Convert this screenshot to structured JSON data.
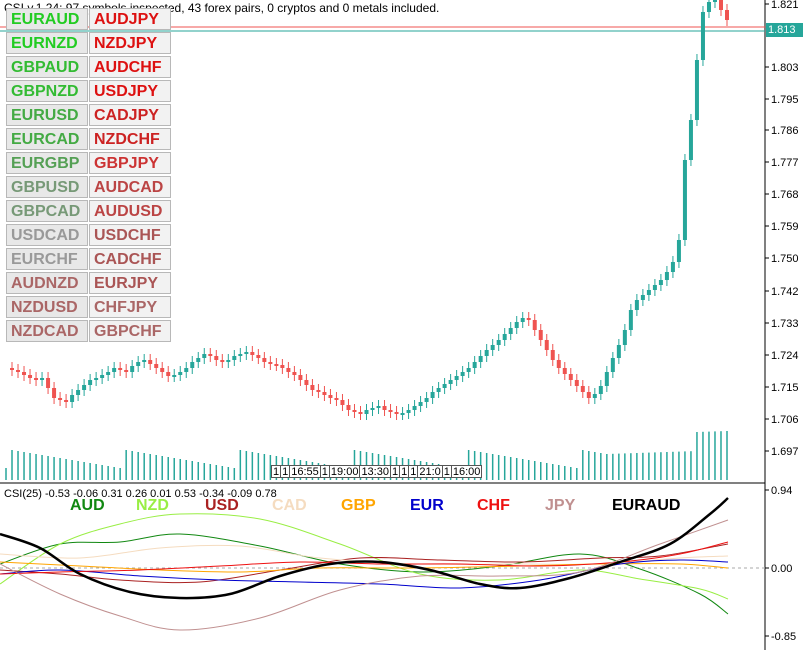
{
  "info_text": "CSI v.1.24: 97 symbols inspected, 43 forex pairs, 0 cryptos and 0 metals included.",
  "current_price": "1.813",
  "price_axis": [
    "1.821",
    "1.803",
    "1.795",
    "1.786",
    "1.777",
    "1.768",
    "1.759",
    "1.750",
    "1.742",
    "1.733",
    "1.724",
    "1.715",
    "1.706",
    "1.697"
  ],
  "pair_rows": [
    [
      {
        "label": "EURAUD",
        "color": "#22cc22"
      },
      {
        "label": "AUDJPY",
        "color": "#dd1111"
      }
    ],
    [
      {
        "label": "EURNZD",
        "color": "#22cc22"
      },
      {
        "label": "NZDJPY",
        "color": "#dd1111"
      }
    ],
    [
      {
        "label": "GBPAUD",
        "color": "#33bb33"
      },
      {
        "label": "AUDCHF",
        "color": "#dd1111"
      }
    ],
    [
      {
        "label": "GBPNZD",
        "color": "#33bb33"
      },
      {
        "label": "USDJPY",
        "color": "#dd1111"
      }
    ],
    [
      {
        "label": "EURUSD",
        "color": "#44aa44"
      },
      {
        "label": "CADJPY",
        "color": "#cc2222"
      }
    ],
    [
      {
        "label": "EURCAD",
        "color": "#44aa44"
      },
      {
        "label": "NZDCHF",
        "color": "#cc2222"
      }
    ],
    [
      {
        "label": "EURGBP",
        "color": "#55a055"
      },
      {
        "label": "GBPJPY",
        "color": "#cc3333"
      }
    ],
    [
      {
        "label": "GBPUSD",
        "color": "#779977"
      },
      {
        "label": "AUDCAD",
        "color": "#bb4444"
      }
    ],
    [
      {
        "label": "GBPCAD",
        "color": "#779977"
      },
      {
        "label": "AUDUSD",
        "color": "#bb4444"
      }
    ],
    [
      {
        "label": "USDCAD",
        "color": "#999999"
      },
      {
        "label": "USDCHF",
        "color": "#aa5555"
      }
    ],
    [
      {
        "label": "EURCHF",
        "color": "#999999"
      },
      {
        "label": "CADCHF",
        "color": "#aa5555"
      }
    ],
    [
      {
        "label": "AUDNZD",
        "color": "#aa6666"
      },
      {
        "label": "EURJPY",
        "color": "#aa5555"
      }
    ],
    [
      {
        "label": "NZDUSD",
        "color": "#aa6666"
      },
      {
        "label": "CHFJPY",
        "color": "#aa6666"
      }
    ],
    [
      {
        "label": "NZDCAD",
        "color": "#aa6666"
      },
      {
        "label": "GBPCHF",
        "color": "#aa6666"
      }
    ]
  ],
  "time_labels": [
    "1",
    "1",
    "16:55",
    "1",
    "19:00",
    "13:30",
    "1",
    "1",
    "1",
    "21:0",
    "1",
    "16:00"
  ],
  "indicator": {
    "title": "CSI(25) -0.53 -0.06 0.31 0.26 0.01 0.53 -0.34 -0.09 0.78",
    "axis": [
      "0.94",
      "0.00",
      "-0.85"
    ]
  },
  "legend": [
    {
      "label": "AUD",
      "color": "#118811"
    },
    {
      "label": "NZD",
      "color": "#99ee44"
    },
    {
      "label": "USD",
      "color": "#aa2222"
    },
    {
      "label": "CAD",
      "color": "#f5dcc0"
    },
    {
      "label": "GBP",
      "color": "#ffa500"
    },
    {
      "label": "EUR",
      "color": "#0000cc"
    },
    {
      "label": "CHF",
      "color": "#ee1111"
    },
    {
      "label": "JPY",
      "color": "#c09090"
    },
    {
      "label": "EURAUD",
      "color": "#000000"
    }
  ],
  "colors": {
    "bull": "#26a69a",
    "bear": "#ef5350",
    "grid": "#c8c8c8"
  }
}
